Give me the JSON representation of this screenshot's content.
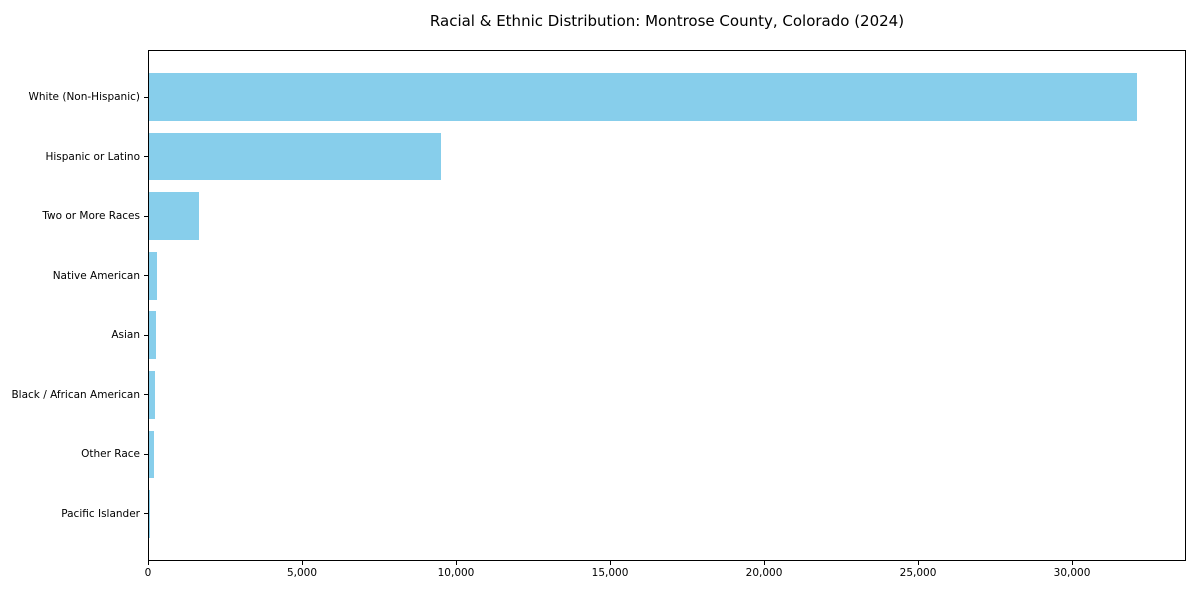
{
  "chart_data": {
    "type": "bar",
    "orientation": "horizontal",
    "title": "Racial & Ethnic Distribution: Montrose County, Colorado (2024)",
    "categories": [
      "White (Non-Hispanic)",
      "Hispanic or Latino",
      "Two or More Races",
      "Native American",
      "Asian",
      "Black / African American",
      "Other Race",
      "Pacific Islander"
    ],
    "values": [
      32080,
      9480,
      1620,
      250,
      240,
      200,
      160,
      25
    ],
    "xlabel": "",
    "ylabel": "",
    "xlim": [
      0,
      33700
    ],
    "x_ticks": [
      0,
      5000,
      10000,
      15000,
      20000,
      25000,
      30000
    ],
    "x_tick_labels": [
      "0",
      "5,000",
      "10,000",
      "15,000",
      "20,000",
      "25,000",
      "30,000"
    ],
    "bar_color": "#87CEEB",
    "spine_color": "#000000",
    "text_color": "#000000",
    "background": "#FFFFFF",
    "grid": false,
    "legend": null
  }
}
